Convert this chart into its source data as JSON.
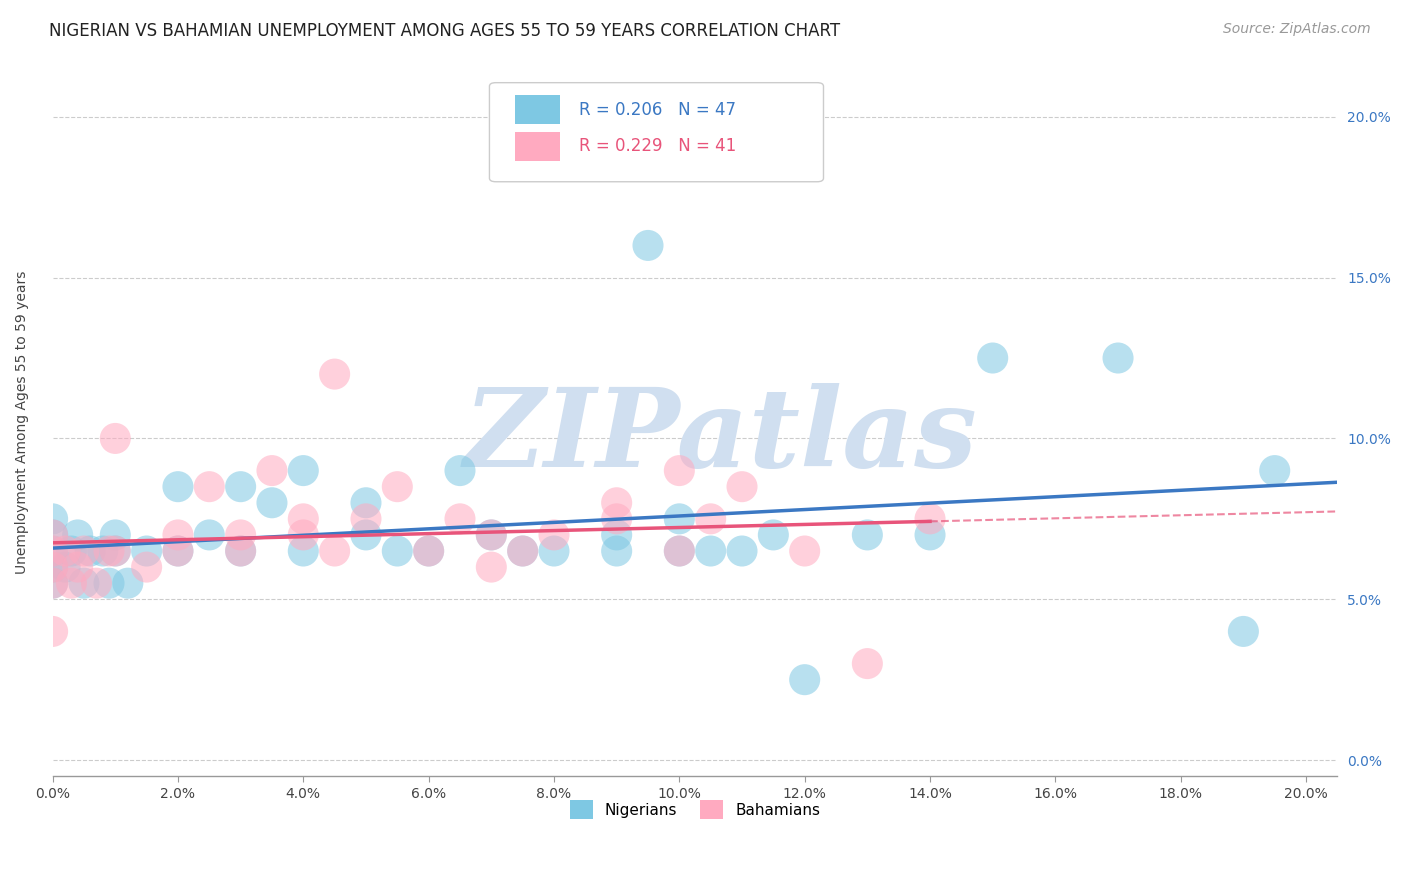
{
  "title": "NIGERIAN VS BAHAMIAN UNEMPLOYMENT AMONG AGES 55 TO 59 YEARS CORRELATION CHART",
  "source": "Source: ZipAtlas.com",
  "ylabel": "Unemployment Among Ages 55 to 59 years",
  "xlim": [
    0.0,
    0.205
  ],
  "ylim": [
    -0.005,
    0.215
  ],
  "xticks": [
    0.0,
    0.02,
    0.04,
    0.06,
    0.08,
    0.1,
    0.12,
    0.14,
    0.16,
    0.18,
    0.2
  ],
  "yticks": [
    0.0,
    0.05,
    0.1,
    0.15,
    0.2
  ],
  "xticklabels": [
    "0.0%",
    "2.0%",
    "4.0%",
    "6.0%",
    "8.0%",
    "10.0%",
    "12.0%",
    "14.0%",
    "16.0%",
    "18.0%",
    "20.0%"
  ],
  "yticklabels": [
    "0.0%",
    "5.0%",
    "10.0%",
    "15.0%",
    "20.0%"
  ],
  "nigerian_color": "#7ec8e3",
  "bahamian_color": "#ffaac0",
  "nigerian_line_color": "#3b78c3",
  "bahamian_line_color": "#e8547a",
  "legend_R_nigerian": "R = 0.206",
  "legend_N_nigerian": "N = 47",
  "legend_R_bahamian": "R = 0.229",
  "legend_N_bahamian": "N = 41",
  "watermark": "ZIPatlas",
  "watermark_color": "#d0dff0",
  "nigerians_x": [
    0.0,
    0.0,
    0.0,
    0.0,
    0.0,
    0.002,
    0.003,
    0.004,
    0.005,
    0.006,
    0.008,
    0.009,
    0.01,
    0.01,
    0.012,
    0.015,
    0.02,
    0.02,
    0.025,
    0.03,
    0.03,
    0.035,
    0.04,
    0.04,
    0.05,
    0.05,
    0.055,
    0.06,
    0.065,
    0.07,
    0.075,
    0.08,
    0.09,
    0.09,
    0.095,
    0.1,
    0.1,
    0.105,
    0.11,
    0.115,
    0.12,
    0.13,
    0.14,
    0.15,
    0.17,
    0.19,
    0.195
  ],
  "nigerians_y": [
    0.055,
    0.06,
    0.065,
    0.07,
    0.075,
    0.06,
    0.065,
    0.07,
    0.055,
    0.065,
    0.065,
    0.055,
    0.065,
    0.07,
    0.055,
    0.065,
    0.065,
    0.085,
    0.07,
    0.065,
    0.085,
    0.08,
    0.065,
    0.09,
    0.07,
    0.08,
    0.065,
    0.065,
    0.09,
    0.07,
    0.065,
    0.065,
    0.065,
    0.07,
    0.16,
    0.065,
    0.075,
    0.065,
    0.065,
    0.07,
    0.025,
    0.07,
    0.07,
    0.125,
    0.125,
    0.04,
    0.09
  ],
  "bahamians_x": [
    0.0,
    0.0,
    0.0,
    0.0,
    0.0,
    0.002,
    0.003,
    0.004,
    0.005,
    0.007,
    0.009,
    0.01,
    0.01,
    0.015,
    0.02,
    0.02,
    0.025,
    0.03,
    0.03,
    0.035,
    0.04,
    0.04,
    0.045,
    0.045,
    0.05,
    0.055,
    0.06,
    0.065,
    0.07,
    0.07,
    0.075,
    0.08,
    0.09,
    0.09,
    0.1,
    0.1,
    0.105,
    0.11,
    0.12,
    0.13,
    0.14
  ],
  "bahamians_y": [
    0.04,
    0.055,
    0.06,
    0.065,
    0.07,
    0.065,
    0.055,
    0.06,
    0.065,
    0.055,
    0.065,
    0.065,
    0.1,
    0.06,
    0.065,
    0.07,
    0.085,
    0.065,
    0.07,
    0.09,
    0.07,
    0.075,
    0.065,
    0.12,
    0.075,
    0.085,
    0.065,
    0.075,
    0.06,
    0.07,
    0.065,
    0.07,
    0.08,
    0.075,
    0.065,
    0.09,
    0.075,
    0.085,
    0.065,
    0.03,
    0.075
  ],
  "title_fontsize": 12,
  "label_fontsize": 10,
  "tick_fontsize": 10,
  "legend_fontsize": 12,
  "source_fontsize": 10,
  "background_color": "#ffffff",
  "grid_color": "#cccccc"
}
